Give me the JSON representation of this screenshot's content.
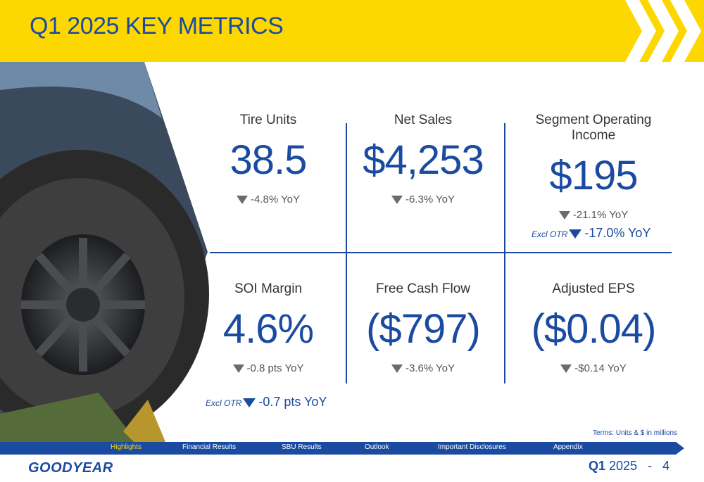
{
  "header": {
    "title": "Q1 2025 KEY METRICS"
  },
  "metrics": [
    {
      "label": "Tire Units",
      "value": "38.5",
      "change": "-4.8% YoY"
    },
    {
      "label": "Net Sales",
      "value": "$4,253",
      "change": "-6.3% YoY"
    },
    {
      "label": "Segment Operating Income",
      "value": "$195",
      "change": "-21.1% YoY",
      "excl_tag": "Excl OTR",
      "excl_change": "-17.0% YoY"
    },
    {
      "label": "SOI Margin",
      "value": "4.6%",
      "change": "-0.8 pts YoY",
      "excl_tag": "Excl OTR",
      "excl_change": "-0.7 pts YoY"
    },
    {
      "label": "Free Cash Flow",
      "value": "($797)",
      "change": "-3.6% YoY"
    },
    {
      "label": "Adjusted EPS",
      "value": "($0.04)",
      "change": "-$0.14 YoY"
    }
  ],
  "terms": "Terms: Units & $ in millions",
  "nav": [
    "Highlights",
    "Financial Results",
    "SBU Results",
    "Outlook",
    "Important Disclosures",
    "Appendix"
  ],
  "footer": {
    "logo": "GOODYEAR",
    "quarter_bold": "Q1",
    "quarter_year": "2025",
    "separator": "-",
    "page_number": "4"
  },
  "colors": {
    "accent_yellow": "#fdd800",
    "brand_blue": "#1b4ba0"
  }
}
